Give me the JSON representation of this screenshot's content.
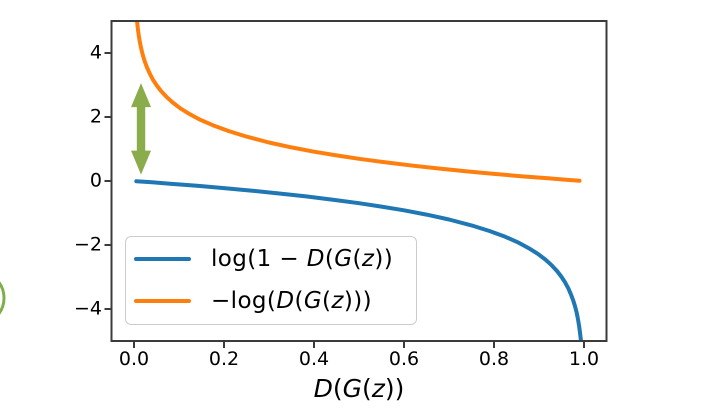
{
  "figure": {
    "background": "#ffffff",
    "spine_color": "#3b3b3b",
    "x_tick_labels": [
      "0.0",
      "0.2",
      "0.4",
      "0.6",
      "0.8",
      "1.0"
    ],
    "y_tick_labels": [
      "4",
      "2",
      "0",
      "−2",
      "−4"
    ],
    "xlabel_parts": [
      "D",
      "(",
      "G",
      "(",
      "z",
      "))"
    ],
    "legend": {
      "items": [
        {
          "color": "#1f77b4",
          "parts": [
            "log(1 − ",
            "D",
            "(",
            "G",
            "(",
            "z",
            "))"
          ]
        },
        {
          "color": "#ff7f0e",
          "parts": [
            "−log(",
            "D",
            "(",
            "G",
            "(",
            "z",
            ")))"
          ]
        }
      ]
    },
    "decoration": {
      "name": "partial-green-circle-left-edge",
      "stroke": "#7fae4d",
      "fill": "none"
    }
  },
  "chart_data": {
    "type": "line",
    "title": "",
    "xlabel": "D(G(z))",
    "ylabel": "",
    "xlim": [
      -0.05,
      1.05
    ],
    "ylim": [
      -5,
      5
    ],
    "grid": false,
    "legend_position": "lower left inside axes",
    "x_tick_values": [
      0.0,
      0.2,
      0.4,
      0.6,
      0.8,
      1.0
    ],
    "y_tick_values": [
      4,
      2,
      0,
      -2,
      -4
    ],
    "series": [
      {
        "name": "log(1 − D(G(z))",
        "formula": "y = ln(1 - x)",
        "color": "#1f77b4",
        "line_width": 4,
        "points": [
          [
            0.005,
            -0.005
          ],
          [
            0.04,
            -0.041
          ],
          [
            0.08,
            -0.083
          ],
          [
            0.14,
            -0.151
          ],
          [
            0.2,
            -0.223
          ],
          [
            0.26,
            -0.301
          ],
          [
            0.32,
            -0.386
          ],
          [
            0.38,
            -0.478
          ],
          [
            0.44,
            -0.58
          ],
          [
            0.5,
            -0.693
          ],
          [
            0.55,
            -0.799
          ],
          [
            0.6,
            -0.916
          ],
          [
            0.65,
            -1.05
          ],
          [
            0.7,
            -1.204
          ],
          [
            0.75,
            -1.386
          ],
          [
            0.79,
            -1.561
          ],
          [
            0.825,
            -1.743
          ],
          [
            0.853,
            -1.917
          ],
          [
            0.877,
            -2.096
          ],
          [
            0.897,
            -2.273
          ],
          [
            0.914,
            -2.453
          ],
          [
            0.928,
            -2.631
          ],
          [
            0.94,
            -2.813
          ],
          [
            0.95,
            -2.996
          ],
          [
            0.958,
            -3.17
          ],
          [
            0.965,
            -3.352
          ],
          [
            0.971,
            -3.54
          ],
          [
            0.976,
            -3.73
          ],
          [
            0.98,
            -3.912
          ],
          [
            0.9835,
            -4.104
          ],
          [
            0.9865,
            -4.306
          ],
          [
            0.989,
            -4.51
          ],
          [
            0.991,
            -4.711
          ],
          [
            0.9925,
            -4.893
          ],
          [
            0.99326,
            -5.0
          ]
        ]
      },
      {
        "name": "−log(D(G(z)))",
        "formula": "y = -ln(x)",
        "color": "#ff7f0e",
        "line_width": 4,
        "points": [
          [
            0.00674,
            5.0
          ],
          [
            0.0075,
            4.893
          ],
          [
            0.0085,
            4.768
          ],
          [
            0.01,
            4.605
          ],
          [
            0.012,
            4.423
          ],
          [
            0.014,
            4.269
          ],
          [
            0.017,
            4.075
          ],
          [
            0.02,
            3.912
          ],
          [
            0.024,
            3.73
          ],
          [
            0.029,
            3.54
          ],
          [
            0.035,
            3.352
          ],
          [
            0.042,
            3.17
          ],
          [
            0.05,
            2.996
          ],
          [
            0.06,
            2.813
          ],
          [
            0.072,
            2.631
          ],
          [
            0.086,
            2.453
          ],
          [
            0.103,
            2.273
          ],
          [
            0.123,
            2.096
          ],
          [
            0.147,
            1.917
          ],
          [
            0.175,
            1.743
          ],
          [
            0.21,
            1.561
          ],
          [
            0.25,
            1.386
          ],
          [
            0.3,
            1.204
          ],
          [
            0.35,
            1.05
          ],
          [
            0.4,
            0.916
          ],
          [
            0.45,
            0.799
          ],
          [
            0.5,
            0.693
          ],
          [
            0.56,
            0.58
          ],
          [
            0.62,
            0.478
          ],
          [
            0.68,
            0.386
          ],
          [
            0.74,
            0.301
          ],
          [
            0.8,
            0.223
          ],
          [
            0.86,
            0.151
          ],
          [
            0.92,
            0.083
          ],
          [
            0.96,
            0.041
          ],
          [
            0.99,
            0.01
          ]
        ]
      }
    ],
    "annotation": {
      "type": "vertical-double-headed-arrow",
      "description": "green double arrow showing gap between the two curves near x=0",
      "x": 0.0156,
      "y_from": 0.2,
      "y_to": 3.06,
      "color": "#8aac4b"
    }
  }
}
